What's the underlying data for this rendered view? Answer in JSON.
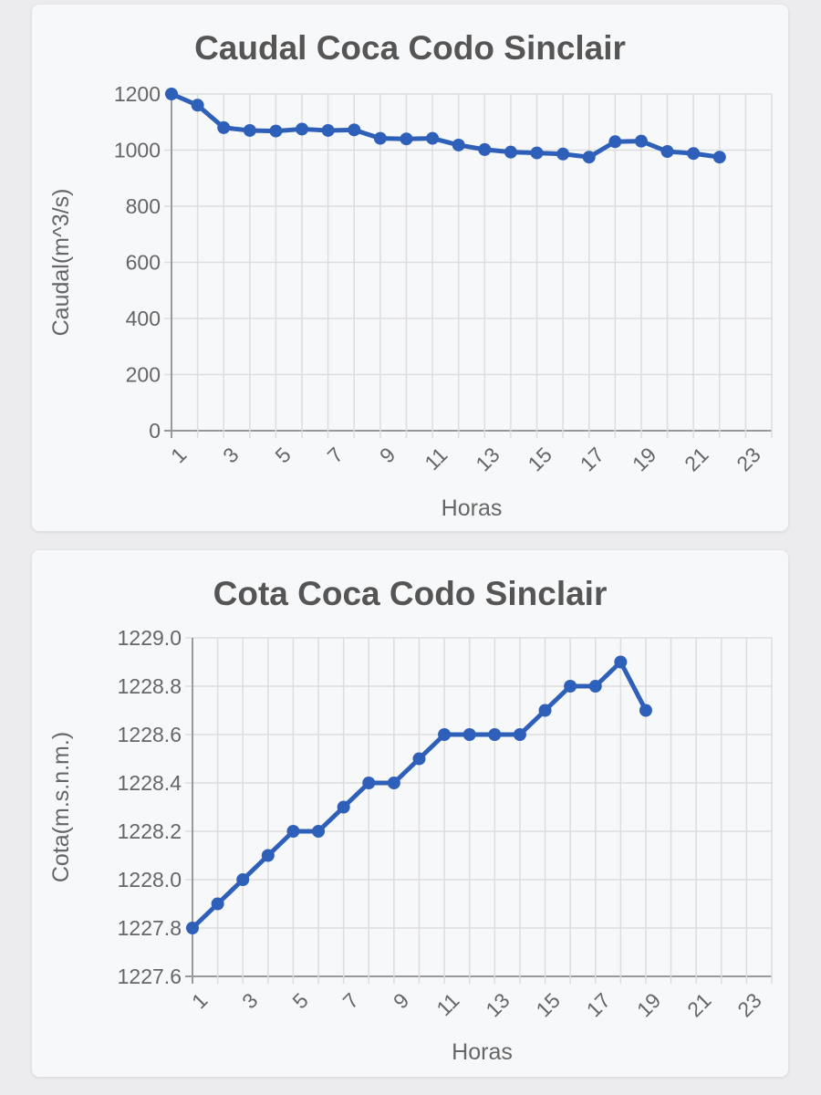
{
  "colors": {
    "line": "#2f60b9",
    "grid": "#dddddd",
    "axis": "#999999",
    "text": "#666666"
  },
  "chart_data": [
    {
      "type": "line",
      "title": "Caudal Coca Codo Sinclair",
      "xlabel": "Horas",
      "ylabel": "Caudal(m^3/s)",
      "x": [
        1,
        2,
        3,
        4,
        5,
        6,
        7,
        8,
        9,
        10,
        11,
        12,
        13,
        14,
        15,
        16,
        17,
        18,
        19,
        20,
        21,
        22
      ],
      "series": [
        {
          "values": [
            1200,
            1160,
            1080,
            1070,
            1068,
            1075,
            1070,
            1072,
            1042,
            1040,
            1042,
            1018,
            1002,
            993,
            990,
            986,
            975,
            1030,
            1032,
            995,
            988,
            975
          ]
        }
      ],
      "xlim": [
        1,
        24
      ],
      "ylim": [
        0,
        1200
      ],
      "x_ticks": [
        "1",
        "3",
        "5",
        "7",
        "9",
        "11",
        "13",
        "15",
        "17",
        "19",
        "21",
        "23"
      ],
      "y_ticks": [
        "0",
        "200",
        "400",
        "600",
        "800",
        "1000",
        "1200"
      ],
      "grid": true,
      "legend": "none"
    },
    {
      "type": "line",
      "title": "Cota Coca Codo Sinclair",
      "xlabel": "Horas",
      "ylabel": "Cota(m.s.n.m.)",
      "x": [
        1,
        2,
        3,
        4,
        5,
        6,
        7,
        8,
        9,
        10,
        11,
        12,
        13,
        14,
        15,
        16,
        17,
        18,
        19
      ],
      "series": [
        {
          "values": [
            1227.8,
            1227.9,
            1228.0,
            1228.1,
            1228.2,
            1228.2,
            1228.3,
            1228.4,
            1228.4,
            1228.5,
            1228.6,
            1228.6,
            1228.6,
            1228.6,
            1228.7,
            1228.8,
            1228.8,
            1228.9,
            1228.7
          ]
        }
      ],
      "xlim": [
        1,
        24
      ],
      "ylim": [
        1227.6,
        1229.0
      ],
      "x_ticks": [
        "1",
        "3",
        "5",
        "7",
        "9",
        "11",
        "13",
        "15",
        "17",
        "19",
        "21",
        "23"
      ],
      "y_ticks": [
        "1227.6",
        "1227.8",
        "1228.0",
        "1228.2",
        "1228.4",
        "1228.6",
        "1228.8",
        "1229.0"
      ],
      "grid": true,
      "legend": "none"
    }
  ]
}
